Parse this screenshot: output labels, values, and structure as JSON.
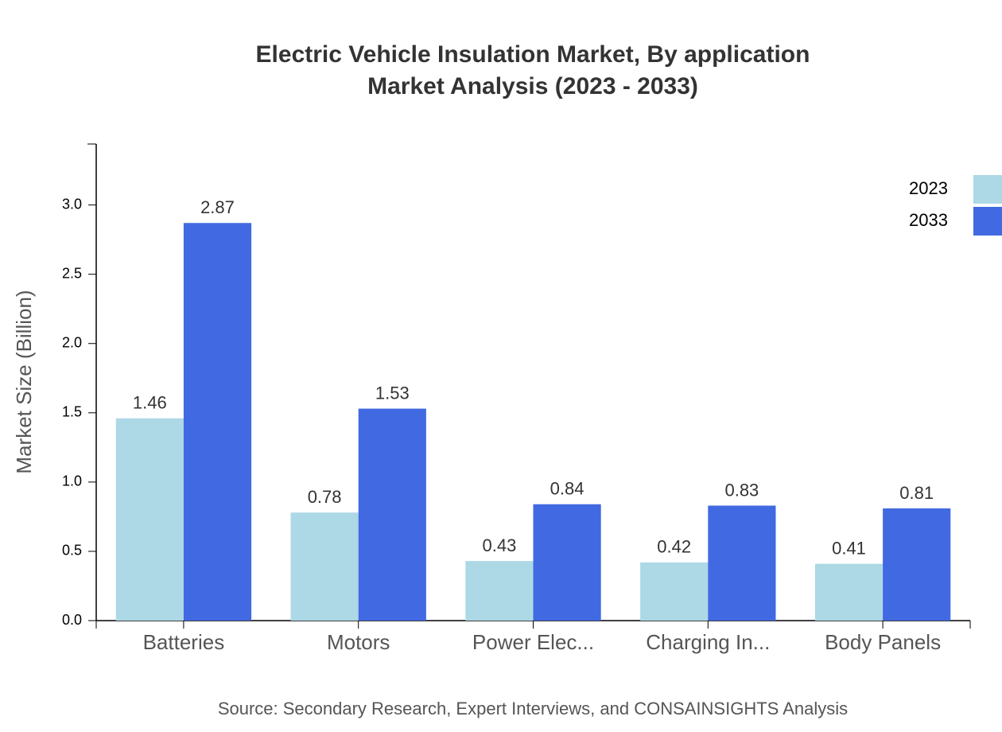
{
  "chart_data": {
    "type": "bar",
    "title": "Electric Vehicle Insulation Market, By application",
    "subtitle": "Market Analysis (2023 - 2033)",
    "y_label": "Market Size (Billion)",
    "source": "Source: Secondary Research, Expert Interviews, and CONSAINSIGHTS Analysis",
    "categories": [
      "Batteries",
      "Motors",
      "Power Elec...",
      "Charging In...",
      "Body Panels"
    ],
    "series": [
      {
        "name": "2023",
        "color": "#add8e6",
        "values": [
          1.46,
          0.78,
          0.43,
          0.42,
          0.41
        ]
      },
      {
        "name": "2033",
        "color": "#4169e1",
        "values": [
          2.87,
          1.53,
          0.84,
          0.83,
          0.81
        ]
      }
    ],
    "ylim": [
      0,
      3.44
    ],
    "yticks": [
      {
        "value": 0,
        "label": "0.0"
      },
      {
        "value": 0.5,
        "label": "0.5"
      },
      {
        "value": 1,
        "label": "1.0"
      },
      {
        "value": 1.5,
        "label": "1.5"
      },
      {
        "value": 2,
        "label": "2.0"
      },
      {
        "value": 2.5,
        "label": "2.5"
      },
      {
        "value": 3,
        "label": "3.0"
      }
    ],
    "legend": "top-right"
  }
}
